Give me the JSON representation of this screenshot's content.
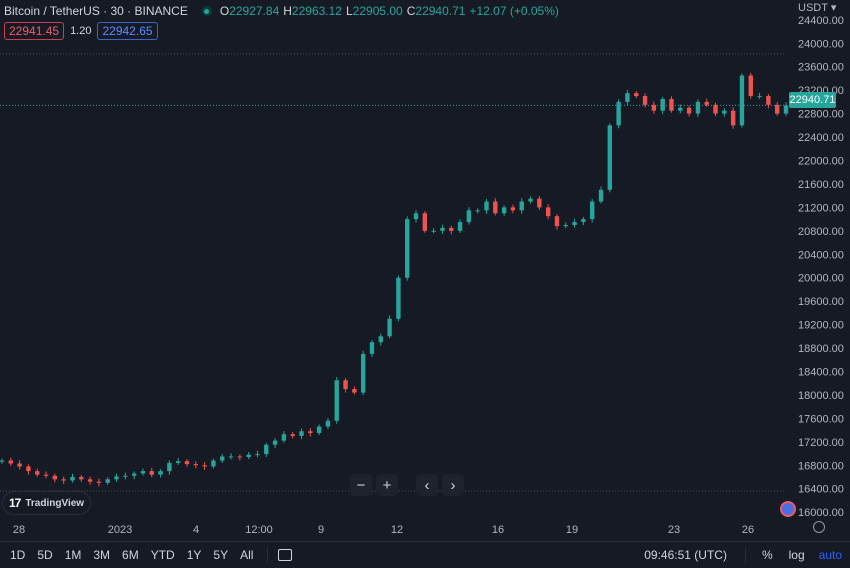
{
  "header": {
    "symbol": "Bitcoin / TetherUS · 30 · BINANCE",
    "ohlc": {
      "o_label": "O",
      "o": "22927.84",
      "h_label": "H",
      "h": "22963.12",
      "l_label": "L",
      "l": "22905.00",
      "c_label": "C",
      "c": "22940.71",
      "change": "+12.07 (+0.05%)"
    }
  },
  "bidask": {
    "sell": "22941.45",
    "spread": "1.20",
    "buy": "22942.65"
  },
  "price_axis": {
    "currency": "USDT",
    "last_price": "22940.71",
    "ticks": [
      "24400.00",
      "24000.00",
      "23600.00",
      "23200.00",
      "22800.00",
      "22400.00",
      "22000.00",
      "21600.00",
      "21200.00",
      "20800.00",
      "20400.00",
      "20000.00",
      "19600.00",
      "19200.00",
      "18800.00",
      "18400.00",
      "18000.00",
      "17600.00",
      "17200.00",
      "16800.00",
      "16400.00",
      "16000.00"
    ]
  },
  "time_axis": [
    "28",
    "2023",
    "4",
    "12:00",
    "9",
    "12",
    "16",
    "19",
    "23",
    "26"
  ],
  "zoom_controls": {
    "zoom_out": "−",
    "zoom_in": "+",
    "scroll_left": "‹",
    "scroll_right": "›"
  },
  "branding": {
    "logo_text": "TradingView",
    "logo_mark": "17"
  },
  "bottom_bar": {
    "periods": [
      "1D",
      "5D",
      "1M",
      "3M",
      "6M",
      "YTD",
      "1Y",
      "5Y",
      "All"
    ],
    "clock": "09:46:51 (UTC)",
    "percent": "%",
    "log": "log",
    "auto": "auto"
  },
  "colors": {
    "up": "#26a69a",
    "down": "#ef5350",
    "background": "#161a25",
    "accent": "#2962ff"
  },
  "chart_data": {
    "type": "line",
    "symbol": "BTCUSDT",
    "interval": "30",
    "ylim": [
      15900,
      24500
    ],
    "hi_line": 23820,
    "lo_line": 16360,
    "x_ticks": [
      "28",
      "2023",
      "4",
      "12:00",
      "9",
      "12",
      "16",
      "19",
      "23",
      "26"
    ],
    "series": [
      {
        "values": [
          16880,
          16830,
          16780,
          16700,
          16640,
          16620,
          16560,
          16540,
          16600,
          16560,
          16520,
          16500,
          16560,
          16610,
          16620,
          16660,
          16700,
          16640,
          16700,
          16840,
          16870,
          16820,
          16800,
          16780,
          16880,
          16950,
          16950,
          16940,
          16980,
          16990,
          17150,
          17220,
          17330,
          17300,
          17380,
          17350,
          17460,
          17560,
          18250,
          18100,
          18040,
          18700,
          18900,
          19000,
          19300,
          20000,
          21000,
          21100,
          20800,
          20800,
          20850,
          20800,
          20950,
          21150,
          21150,
          21300,
          21100,
          21200,
          21150,
          21300,
          21350,
          21200,
          21050,
          20880,
          20900,
          20950,
          21000,
          21300,
          21500,
          22600,
          23000,
          23150,
          23100,
          22950,
          22850,
          23050,
          22850,
          22900,
          22800,
          23000,
          22950,
          22800,
          22850,
          22600,
          23450,
          23100,
          23100,
          22950,
          22800,
          22940
        ]
      }
    ]
  }
}
